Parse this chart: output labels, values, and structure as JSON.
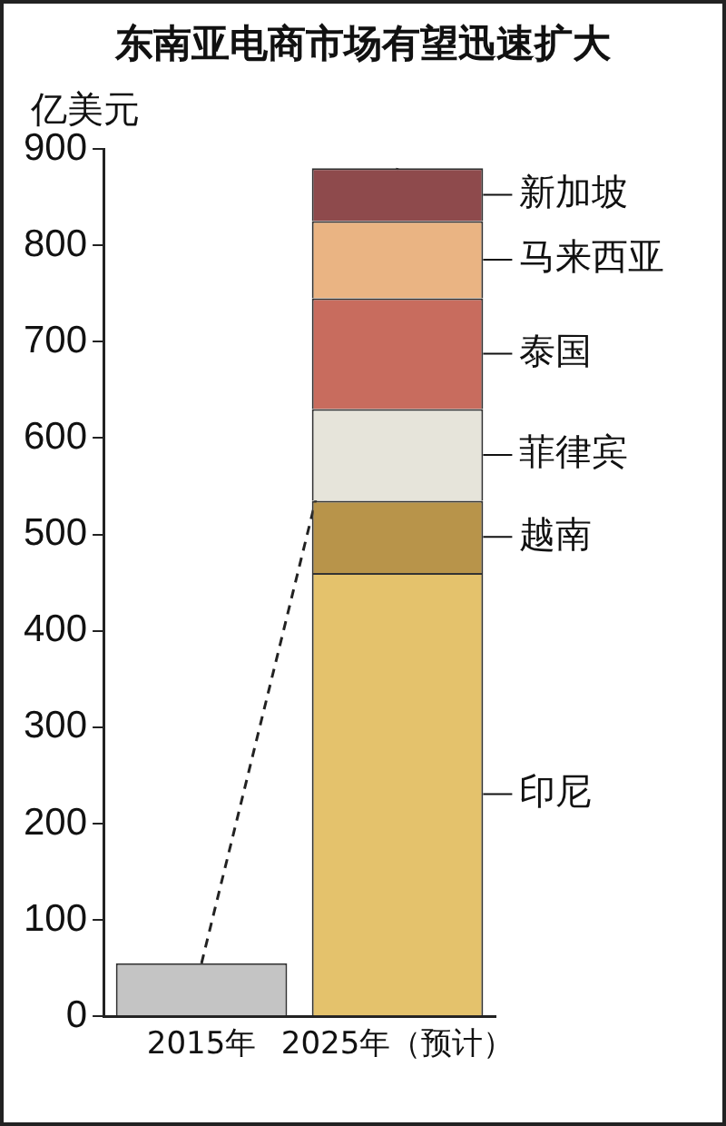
{
  "chart_data": {
    "type": "bar",
    "title": "东南亚电商市场有望迅速扩大",
    "ylabel": "亿美元",
    "categories": [
      "2015年",
      "2025年（预计）"
    ],
    "stacked": true,
    "ylim": [
      0,
      900
    ],
    "yticks": [
      0,
      100,
      200,
      300,
      400,
      500,
      600,
      700,
      800,
      900
    ],
    "grid": false,
    "legend": false,
    "series": [
      {
        "color": "#c4c4c4",
        "values": [
          55,
          null
        ]
      },
      {
        "name": "印尼",
        "color": "#e4c26c",
        "values": [
          null,
          460
        ]
      },
      {
        "name": "越南",
        "color": "#b8944a",
        "values": [
          null,
          75
        ]
      },
      {
        "name": "菲律宾",
        "color": "#e6e4da",
        "values": [
          null,
          95
        ]
      },
      {
        "name": "泰国",
        "color": "#c86c5e",
        "values": [
          null,
          115
        ]
      },
      {
        "name": "马来西亚",
        "color": "#eab483",
        "values": [
          null,
          80
        ]
      },
      {
        "name": "新加坡",
        "color": "#8e4a4c",
        "values": [
          null,
          55
        ]
      },
      {
        "type": "line",
        "color": "#222222",
        "line_style": "dashed",
        "marker": "none",
        "values": [
          55,
          880
        ]
      }
    ]
  }
}
